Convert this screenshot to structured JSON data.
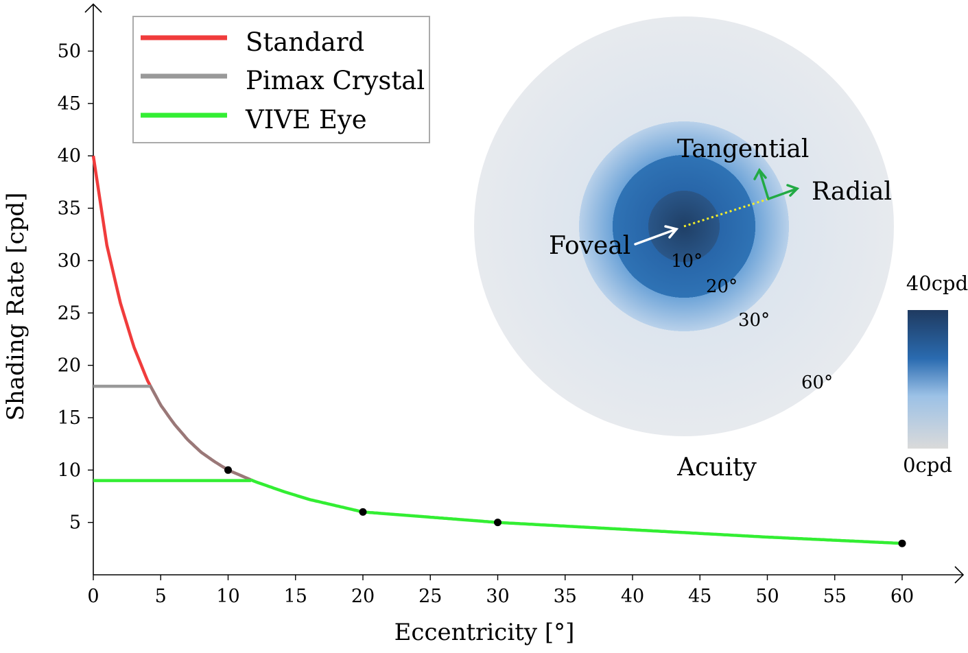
{
  "chart_data": {
    "type": "line",
    "xlabel": "Eccentricity [°]",
    "ylabel": "Shading Rate [cpd]",
    "xlim": [
      0,
      64
    ],
    "ylim": [
      0,
      54
    ],
    "xticks": [
      0,
      5,
      10,
      15,
      20,
      25,
      30,
      35,
      40,
      45,
      50,
      55,
      60
    ],
    "yticks": [
      5,
      10,
      15,
      20,
      25,
      30,
      35,
      40,
      45,
      50
    ],
    "legend_position": "top-left",
    "grid": false,
    "series": [
      {
        "name": "Standard",
        "color": "#f03c3c",
        "x": [
          0,
          1,
          2,
          3,
          4,
          5,
          6,
          7,
          8,
          9,
          10,
          12,
          14,
          16,
          18,
          20,
          25,
          30,
          40,
          50,
          60
        ],
        "y": [
          40,
          31.5,
          26.0,
          21.8,
          18.6,
          16.2,
          14.4,
          12.9,
          11.7,
          10.8,
          10.0,
          8.9,
          8.0,
          7.2,
          6.6,
          6.0,
          5.5,
          5.0,
          4.3,
          3.6,
          3.0
        ]
      },
      {
        "name": "Pimax Crystal",
        "color": "#999999",
        "x": [
          0,
          4.2
        ],
        "y": [
          18,
          18
        ]
      },
      {
        "name": "VIVE Eye",
        "color": "#33ee33",
        "x": [
          0,
          11.7
        ],
        "y": [
          9,
          9
        ]
      }
    ],
    "markers": [
      {
        "x": 10,
        "y": 10
      },
      {
        "x": 20,
        "y": 6
      },
      {
        "x": 30,
        "y": 5
      },
      {
        "x": 60,
        "y": 3
      }
    ],
    "inset": {
      "title": "Acuity",
      "ring_labels": [
        "10°",
        "20°",
        "30°",
        "60°"
      ],
      "annotations": {
        "foveal": "Foveal",
        "tangential": "Tangential",
        "radial": "Radial"
      },
      "colorbar": {
        "max_label": "40cpd",
        "min_label": "0cpd"
      }
    }
  }
}
